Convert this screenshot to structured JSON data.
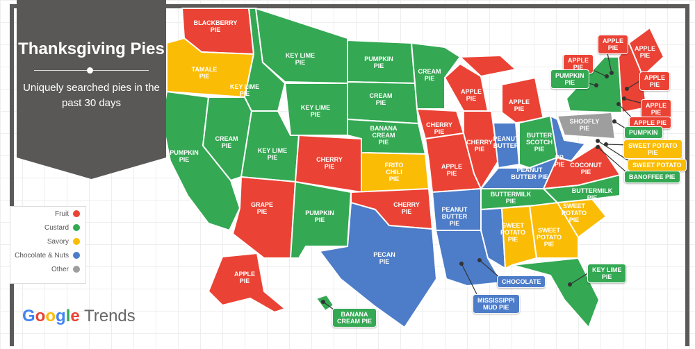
{
  "title": "Thanksgiving Pies",
  "subtitle": "Uniquely searched pies in the past 30 days",
  "colors": {
    "Fruit": "#EA4335",
    "Custard": "#34A853",
    "Savory": "#FBBC05",
    "Chocolate & Nuts": "#4D7CC8",
    "Other": "#9E9E9E"
  },
  "legend": [
    {
      "label": "Fruit",
      "color": "#EA4335"
    },
    {
      "label": "Custard",
      "color": "#34A853"
    },
    {
      "label": "Savory",
      "color": "#FBBC05"
    },
    {
      "label": "Chocolate & Nuts",
      "color": "#4D7CC8"
    },
    {
      "label": "Other",
      "color": "#9E9E9E"
    }
  ],
  "logo": {
    "google": "Google",
    "trends": "Trends"
  },
  "states": {
    "WA": {
      "pie": "BLACKBERRY\nPIE",
      "cat": "Fruit"
    },
    "OR": {
      "pie": "TAMALE\nPIE",
      "cat": "Savory"
    },
    "CA": {
      "pie": "PUMPKIN\nPIE",
      "cat": "Custard"
    },
    "NV": {
      "pie": "CREAM\nPIE",
      "cat": "Custard"
    },
    "ID": {
      "pie": "KEY LIME\nPIE",
      "cat": "Custard"
    },
    "MT": {
      "pie": "KEY LIME\nPIE",
      "cat": "Custard"
    },
    "WY": {
      "pie": "KEY LIME\nPIE",
      "cat": "Custard"
    },
    "UT": {
      "pie": "KEY LIME\nPIE",
      "cat": "Custard"
    },
    "AZ": {
      "pie": "GRAPE\nPIE",
      "cat": "Fruit"
    },
    "CO": {
      "pie": "CHERRY\nPIE",
      "cat": "Fruit"
    },
    "NM": {
      "pie": "PUMPKIN\nPIE",
      "cat": "Custard"
    },
    "ND": {
      "pie": "PUMPKIN\nPIE",
      "cat": "Custard"
    },
    "SD": {
      "pie": "CREAM\nPIE",
      "cat": "Custard"
    },
    "NE": {
      "pie": "BANANA\nCREAM\nPIE",
      "cat": "Custard"
    },
    "KS": {
      "pie": "FRITO\nCHILI\nPIE",
      "cat": "Savory"
    },
    "OK": {
      "pie": "CHERRY\nPIE",
      "cat": "Fruit"
    },
    "TX": {
      "pie": "PECAN\nPIE",
      "cat": "Chocolate & Nuts"
    },
    "MN": {
      "pie": "CREAM\nPIE",
      "cat": "Custard"
    },
    "IA": {
      "pie": "CHERRY\nPIE",
      "cat": "Fruit"
    },
    "MO": {
      "pie": "APPLE\nPIE",
      "cat": "Fruit"
    },
    "AR": {
      "pie": "PEANUT\nBUTTER\nPIE",
      "cat": "Chocolate & Nuts"
    },
    "LA": {
      "pie": "",
      "cat": "Chocolate & Nuts"
    },
    "WI": {
      "pie": "APPLE\nPIE",
      "cat": "Fruit"
    },
    "IL": {
      "pie": "CHERRY\nPIE",
      "cat": "Fruit"
    },
    "MI": {
      "pie": "APPLE\nPIE",
      "cat": "Fruit"
    },
    "IN": {
      "pie": "PEANUT\nBUTTER",
      "cat": "Chocolate & Nuts"
    },
    "OH": {
      "pie": "BUTTER\nSCOTCH\nPIE",
      "cat": "Custard"
    },
    "KY": {
      "pie": "PEANUT\nBUTTER PIE",
      "cat": "Chocolate & Nuts"
    },
    "TN": {
      "pie": "BUTTERMILK\nPIE",
      "cat": "Custard"
    },
    "MS": {
      "pie": "",
      "cat": "Chocolate & Nuts"
    },
    "AL": {
      "pie": "SWEET\nPOTATO\nPIE",
      "cat": "Savory"
    },
    "GA": {
      "pie": "SWEET\nPOTATO\nPIE",
      "cat": "Savory"
    },
    "SC": {
      "pie": "SWEET\nPOTATO\nPIE",
      "cat": "Savory"
    },
    "NC": {
      "pie": "BUTTERMILK\nPIE",
      "cat": "Custard"
    },
    "FL": {
      "pie": "",
      "cat": "Custard"
    },
    "VA": {
      "pie": "COCONUT\nPIE",
      "cat": "Fruit"
    },
    "WV": {
      "pie": "PB\nPIE",
      "cat": "Chocolate & Nuts"
    },
    "PA": {
      "pie": "SHOOFLY\nPIE",
      "cat": "Other"
    },
    "NY": {
      "pie": "",
      "cat": "Custard"
    },
    "ME": {
      "pie": "APPLE\nPIE",
      "cat": "Fruit"
    },
    "NE_REGION": {
      "pie": "",
      "cat": "Fruit"
    },
    "AK": {
      "pie": "APPLE\nPIE",
      "cat": "Fruit"
    },
    "HI": {
      "pie": "",
      "cat": "Custard"
    }
  },
  "callouts": [
    {
      "label": "APPLE\nPIE",
      "cat": "Fruit"
    },
    {
      "label": "APPLE\nPIE",
      "cat": "Fruit"
    },
    {
      "label": "PUMPKIN\nPIE",
      "cat": "Custard"
    },
    {
      "label": "APPLE\nPIE",
      "cat": "Fruit"
    },
    {
      "label": "APPLE\nPIE",
      "cat": "Fruit"
    },
    {
      "label": "APPLE PIE",
      "cat": "Fruit"
    },
    {
      "label": "PUMPKIN",
      "cat": "Custard"
    },
    {
      "label": "SWEET POTATO\nPIE",
      "cat": "Savory"
    },
    {
      "label": "SWEET POTATO",
      "cat": "Savory"
    },
    {
      "label": "BANOFFEE PIE",
      "cat": "Custard"
    },
    {
      "label": "CHOCOLATE",
      "cat": "Chocolate & Nuts"
    },
    {
      "label": "MISSISSIPPI\nMUD PIE",
      "cat": "Chocolate & Nuts"
    },
    {
      "label": "KEY LIME\nPIE",
      "cat": "Custard"
    },
    {
      "label": "BANANA\nCREAM PIE",
      "cat": "Custard"
    }
  ]
}
